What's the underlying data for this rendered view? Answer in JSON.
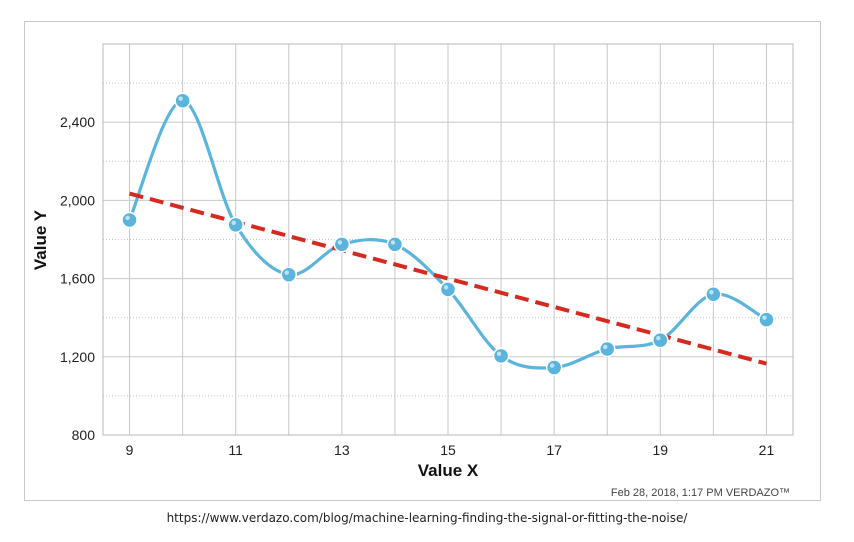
{
  "chart_data": {
    "type": "line",
    "title": "",
    "xlabel": "Value X",
    "ylabel": "Value Y",
    "xlim": [
      8.5,
      21.5
    ],
    "ylim": [
      800,
      2800
    ],
    "x_ticks": [
      9,
      11,
      13,
      15,
      17,
      19,
      21
    ],
    "y_ticks": [
      800,
      1200,
      1600,
      2000,
      2400
    ],
    "x_tick_labels": [
      "9",
      "11",
      "13",
      "15",
      "17",
      "19",
      "21"
    ],
    "y_tick_labels": [
      "800",
      "1,200",
      "1,600",
      "2,000",
      "2,400"
    ],
    "grid": true,
    "series": [
      {
        "kind": "smooth-line-with-markers",
        "color": "#5ab4dc",
        "x": [
          9,
          10,
          11,
          12,
          13,
          14,
          15,
          16,
          17,
          18,
          19,
          20,
          21
        ],
        "values": [
          1900,
          2510,
          1875,
          1620,
          1775,
          1775,
          1545,
          1205,
          1145,
          1240,
          1285,
          1520,
          1390
        ]
      },
      {
        "kind": "dashed-trend-line",
        "color": "#d42a20",
        "x": [
          9,
          21
        ],
        "values": [
          2035,
          1165
        ]
      }
    ]
  },
  "credit": {
    "text": "Feb 28, 2018, 1:17 PM  VERDAZO™"
  },
  "source": {
    "url": "https://www.verdazo.com/blog/machine-learning-finding-the-signal-or-fitting-the-noise/"
  }
}
